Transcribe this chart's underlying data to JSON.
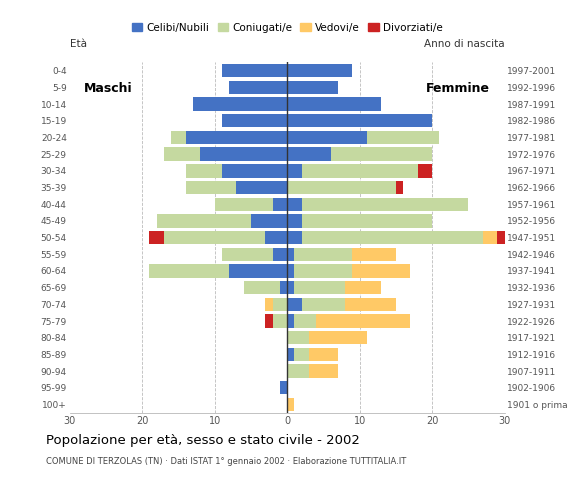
{
  "age_groups": [
    "100+",
    "95-99",
    "90-94",
    "85-89",
    "80-84",
    "75-79",
    "70-74",
    "65-69",
    "60-64",
    "55-59",
    "50-54",
    "45-49",
    "40-44",
    "35-39",
    "30-34",
    "25-29",
    "20-24",
    "15-19",
    "10-14",
    "5-9",
    "0-4"
  ],
  "birth_years": [
    "1901 o prima",
    "1902-1906",
    "1907-1911",
    "1912-1916",
    "1917-1921",
    "1922-1926",
    "1927-1931",
    "1932-1936",
    "1937-1941",
    "1942-1946",
    "1947-1951",
    "1952-1956",
    "1957-1961",
    "1962-1966",
    "1967-1971",
    "1972-1976",
    "1977-1981",
    "1982-1986",
    "1987-1991",
    "1992-1996",
    "1997-2001"
  ],
  "males": {
    "celibe": [
      0,
      1,
      0,
      0,
      0,
      0,
      0,
      1,
      8,
      2,
      3,
      5,
      2,
      7,
      9,
      12,
      14,
      9,
      13,
      8,
      9
    ],
    "coniugato": [
      0,
      0,
      0,
      0,
      0,
      2,
      2,
      5,
      11,
      7,
      14,
      13,
      8,
      7,
      5,
      5,
      2,
      0,
      0,
      0,
      0
    ],
    "vedovo": [
      0,
      0,
      0,
      0,
      0,
      0,
      1,
      0,
      0,
      0,
      0,
      0,
      0,
      0,
      0,
      0,
      0,
      0,
      0,
      0,
      0
    ],
    "divorziato": [
      0,
      0,
      0,
      0,
      0,
      1,
      0,
      0,
      0,
      0,
      2,
      0,
      0,
      0,
      0,
      0,
      0,
      0,
      0,
      0,
      0
    ]
  },
  "females": {
    "nubile": [
      0,
      0,
      0,
      1,
      0,
      1,
      2,
      1,
      1,
      1,
      2,
      2,
      2,
      0,
      2,
      6,
      11,
      20,
      13,
      7,
      9
    ],
    "coniugata": [
      0,
      0,
      3,
      2,
      3,
      3,
      6,
      7,
      8,
      8,
      25,
      18,
      23,
      15,
      16,
      14,
      10,
      0,
      0,
      0,
      0
    ],
    "vedova": [
      1,
      0,
      4,
      4,
      8,
      13,
      7,
      5,
      8,
      6,
      2,
      0,
      0,
      0,
      0,
      0,
      0,
      0,
      0,
      0,
      0
    ],
    "divorziata": [
      0,
      0,
      0,
      0,
      0,
      0,
      0,
      0,
      0,
      0,
      1,
      0,
      0,
      1,
      2,
      0,
      0,
      0,
      0,
      0,
      0
    ]
  },
  "colors": {
    "celibe_nubile": "#4472c4",
    "coniugato_a": "#c5d9a0",
    "vedovo_a": "#ffc966",
    "divorziato_a": "#cc2222"
  },
  "xlim": 30,
  "title": "Popolazione per età, sesso e stato civile - 2002",
  "subtitle": "COMUNE DI TERZOLAS (TN) · Dati ISTAT 1° gennaio 2002 · Elaborazione TUTTITALIA.IT",
  "xlabel_left": "Maschi",
  "xlabel_right": "Femmine",
  "ylabel_left": "Età",
  "ylabel_right": "Anno di nascita",
  "legend_labels": [
    "Celibi/Nubili",
    "Coniugati/e",
    "Vedovi/e",
    "Divorziati/e"
  ],
  "background_color": "#ffffff",
  "bar_height": 0.8
}
